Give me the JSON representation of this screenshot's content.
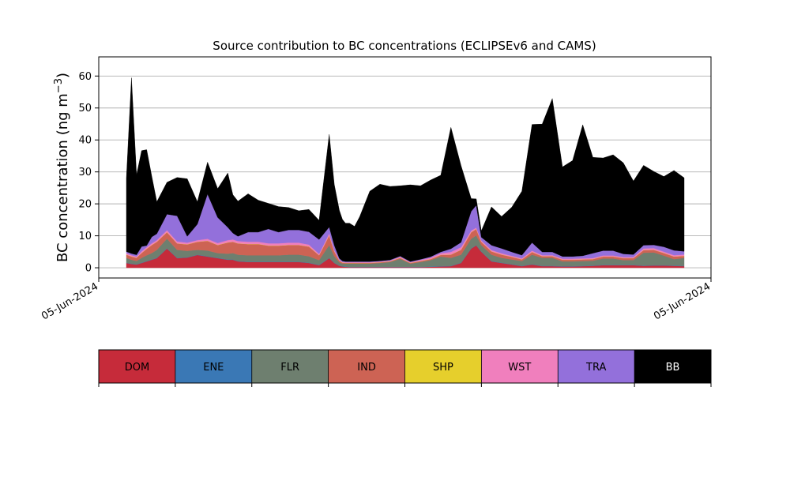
{
  "chart_data": {
    "type": "area",
    "title": "Source contribution to BC concentrations (ECLIPSEv6 and CAMS)",
    "ylabel_main": "BC concentration (ng m",
    "ylabel_sup": "−3",
    "ylabel_close": ")",
    "xlabel": "",
    "ylim": [
      -3.2,
      66
    ],
    "yticks": [
      0,
      10,
      20,
      30,
      40,
      50,
      60
    ],
    "grid": "horizontal",
    "x_tick_labels": [
      "05-Jun-2024",
      "05-Jun-2024"
    ],
    "x": [
      0,
      0.5,
      1,
      1.5,
      2,
      2.5,
      3,
      4,
      5,
      6,
      7,
      8,
      9,
      10,
      10.5,
      11,
      12,
      13,
      14,
      15,
      16,
      17,
      18,
      19,
      20,
      20.5,
      21,
      21.3,
      21.6,
      22,
      22.5,
      23,
      24,
      25,
      26,
      27,
      28,
      29,
      30,
      31,
      32,
      33,
      34,
      34.5,
      35,
      36,
      37,
      38,
      39,
      40,
      41,
      42,
      43,
      44,
      45,
      46,
      47,
      48,
      49,
      50,
      51,
      52,
      53,
      54,
      55
    ],
    "series": [
      {
        "name": "DOM",
        "color": "#c62b3a",
        "values": [
          1.5,
          1.2,
          1.0,
          1.5,
          2.0,
          2.5,
          3.0,
          6.0,
          3.0,
          3.2,
          4.0,
          3.5,
          3.0,
          2.5,
          2.5,
          2.0,
          1.8,
          1.8,
          1.8,
          1.8,
          1.8,
          1.8,
          1.5,
          0.8,
          3.0,
          1.5,
          0.6,
          0.4,
          0.3,
          0.2,
          0.2,
          0.2,
          0.2,
          0.2,
          0.2,
          0.2,
          0.2,
          0.2,
          0.3,
          0.4,
          0.5,
          1.5,
          6.0,
          7.0,
          5.0,
          2.0,
          1.5,
          1.0,
          0.5,
          1.0,
          0.5,
          0.5,
          0.4,
          0.4,
          0.5,
          0.6,
          0.8,
          0.8,
          0.8,
          0.8,
          0.6,
          0.7,
          0.7,
          0.6,
          0.5
        ]
      },
      {
        "name": "ENE",
        "color": "#3a78b5",
        "values": [
          0.1,
          0.1,
          0.1,
          0.1,
          0.1,
          0.1,
          0.1,
          0.1,
          0.1,
          0.1,
          0.1,
          0.1,
          0.1,
          0.1,
          0.1,
          0.1,
          0.1,
          0.1,
          0.1,
          0.1,
          0.1,
          0.1,
          0.1,
          0.1,
          0.1,
          0.1,
          0.1,
          0.1,
          0.1,
          0.1,
          0.1,
          0.1,
          0.1,
          0.1,
          0.1,
          0.1,
          0.1,
          0.1,
          0.1,
          0.1,
          0.1,
          0.1,
          0.1,
          0.1,
          0.1,
          0.1,
          0.1,
          0.1,
          0.1,
          0.1,
          0.1,
          0.1,
          0.1,
          0.1,
          0.1,
          0.1,
          0.1,
          0.1,
          0.1,
          0.1,
          0.1,
          0.1,
          0.1,
          0.1,
          0.1
        ]
      },
      {
        "name": "FLR",
        "color": "#6e7f6f",
        "values": [
          1.5,
          1.2,
          1.0,
          1.5,
          1.8,
          2.0,
          2.5,
          3.0,
          2.5,
          2.0,
          1.5,
          1.8,
          1.5,
          1.8,
          2.0,
          2.0,
          2.0,
          2.0,
          2.0,
          2.0,
          2.2,
          2.2,
          2.0,
          1.5,
          4.0,
          2.0,
          1.0,
          0.8,
          0.9,
          1.0,
          1.0,
          1.0,
          1.0,
          1.2,
          1.5,
          2.5,
          1.0,
          1.5,
          2.0,
          3.0,
          2.5,
          2.5,
          3.0,
          3.0,
          2.0,
          2.0,
          1.5,
          1.5,
          1.5,
          3.0,
          2.5,
          2.5,
          1.5,
          1.5,
          1.5,
          1.5,
          2.0,
          2.0,
          1.5,
          1.5,
          4.0,
          4.0,
          3.0,
          2.0,
          2.5
        ]
      },
      {
        "name": "IND",
        "color": "#cd6354",
        "values": [
          1.0,
          1.0,
          1.0,
          1.5,
          2.0,
          2.5,
          2.5,
          2.0,
          2.0,
          2.0,
          2.5,
          3.0,
          2.5,
          3.5,
          3.5,
          3.5,
          3.5,
          3.5,
          3.0,
          3.0,
          3.0,
          3.0,
          3.0,
          1.5,
          3.0,
          1.5,
          0.5,
          0.3,
          0.2,
          0.2,
          0.2,
          0.2,
          0.2,
          0.2,
          0.2,
          0.3,
          0.2,
          0.3,
          0.3,
          0.5,
          1.0,
          1.5,
          2.0,
          2.0,
          1.0,
          1.0,
          1.0,
          0.8,
          0.5,
          0.8,
          0.5,
          0.5,
          0.5,
          0.5,
          0.5,
          0.5,
          0.6,
          0.6,
          0.6,
          0.6,
          0.8,
          0.8,
          0.8,
          0.8,
          0.6
        ]
      },
      {
        "name": "SHP",
        "color": "#e6cf2c",
        "values": [
          0.05,
          0.05,
          0.05,
          0.05,
          0.05,
          0.05,
          0.05,
          0.05,
          0.05,
          0.05,
          0.05,
          0.05,
          0.05,
          0.05,
          0.05,
          0.05,
          0.05,
          0.05,
          0.05,
          0.05,
          0.05,
          0.05,
          0.05,
          0.05,
          0.05,
          0.05,
          0.05,
          0.05,
          0.05,
          0.05,
          0.05,
          0.05,
          0.05,
          0.05,
          0.05,
          0.05,
          0.05,
          0.05,
          0.05,
          0.05,
          0.05,
          0.05,
          0.05,
          0.05,
          0.05,
          0.05,
          0.05,
          0.05,
          0.05,
          0.05,
          0.05,
          0.05,
          0.05,
          0.05,
          0.05,
          0.05,
          0.05,
          0.05,
          0.05,
          0.05,
          0.05,
          0.05,
          0.05,
          0.05,
          0.05
        ]
      },
      {
        "name": "WST",
        "color": "#f07fbd",
        "values": [
          0.4,
          0.4,
          0.4,
          0.5,
          0.5,
          0.5,
          0.5,
          0.6,
          0.6,
          0.5,
          0.5,
          0.6,
          0.6,
          0.7,
          0.7,
          0.7,
          0.7,
          0.7,
          0.7,
          0.7,
          0.7,
          0.7,
          0.6,
          0.4,
          0.6,
          0.4,
          0.2,
          0.2,
          0.2,
          0.2,
          0.2,
          0.2,
          0.2,
          0.2,
          0.2,
          0.3,
          0.2,
          0.3,
          0.4,
          0.5,
          0.8,
          0.8,
          0.5,
          0.4,
          0.4,
          0.4,
          0.4,
          0.3,
          0.3,
          0.4,
          0.3,
          0.3,
          0.3,
          0.3,
          0.3,
          0.3,
          0.3,
          0.3,
          0.3,
          0.3,
          0.5,
          0.5,
          0.4,
          0.4,
          0.4
        ]
      },
      {
        "name": "TRA",
        "color": "#9370db",
        "values": [
          0.5,
          0.5,
          0.5,
          1.5,
          0.5,
          2.0,
          2.0,
          5.0,
          8.0,
          2.0,
          5.0,
          14.0,
          8.0,
          4.0,
          2.0,
          1.5,
          3.0,
          3.0,
          4.5,
          3.5,
          4.0,
          4.0,
          4.0,
          4.5,
          2.0,
          1.5,
          0.5,
          0.3,
          0.2,
          0.2,
          0.2,
          0.2,
          0.2,
          0.2,
          0.2,
          0.2,
          0.2,
          0.2,
          0.3,
          0.4,
          1.0,
          1.5,
          6.0,
          7.0,
          1.0,
          1.5,
          1.5,
          1.2,
          1.0,
          2.5,
          1.0,
          1.0,
          0.7,
          0.7,
          0.8,
          1.5,
          1.5,
          1.5,
          1.0,
          0.8,
          1.0,
          1.0,
          1.5,
          1.5,
          1.0
        ]
      },
      {
        "name": "BB",
        "color": "#000000",
        "values": [
          23,
          55,
          25,
          30,
          30,
          19,
          10,
          10,
          12,
          18,
          7,
          10,
          9,
          17,
          12,
          11,
          12,
          10,
          8,
          8,
          7,
          6,
          7,
          6,
          29,
          19,
          15,
          13,
          12,
          12,
          11,
          14,
          22,
          24,
          23,
          22,
          24,
          23,
          24,
          24,
          38,
          24,
          4,
          2,
          2,
          12,
          10,
          14,
          20,
          37,
          40,
          48,
          28,
          30,
          41,
          30,
          29,
          30,
          28.5,
          23,
          25,
          23,
          22,
          25,
          23
        ]
      }
    ]
  }
}
